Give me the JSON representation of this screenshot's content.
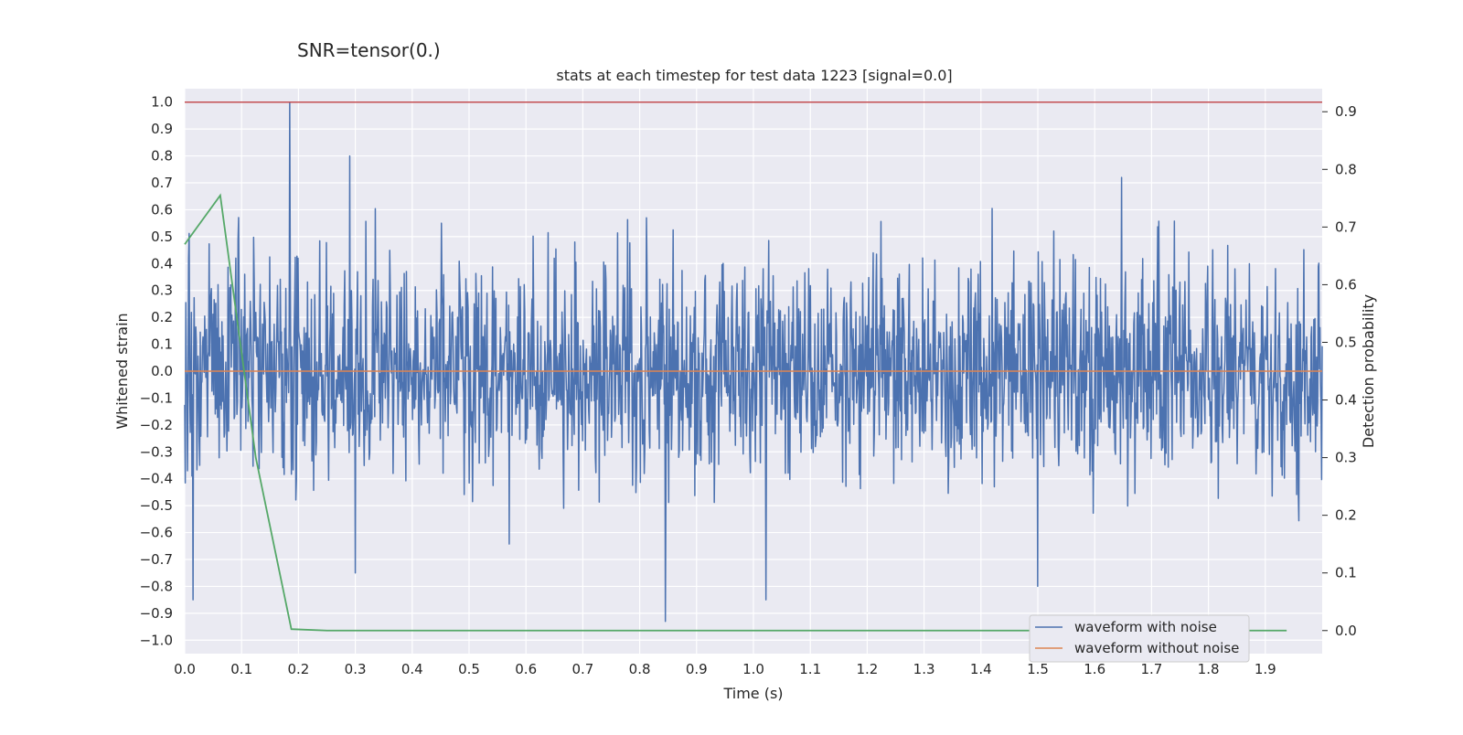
{
  "figure": {
    "suptitle": "SNR=tensor(0.)"
  },
  "chart_data": {
    "type": "line",
    "title": "stats at each timestep for test data 1223 [signal=0.0]",
    "xlabel": "Time (s)",
    "ylabel": "Whitened strain",
    "y2label": "Detection probability",
    "xlim": [
      0.0,
      2.0
    ],
    "ylim": [
      -1.05,
      1.05
    ],
    "y2lim": [
      -0.04,
      0.94
    ],
    "x_ticks": [
      "0.0",
      "0.1",
      "0.2",
      "0.3",
      "0.4",
      "0.5",
      "0.6",
      "0.7",
      "0.8",
      "0.9",
      "1.0",
      "1.1",
      "1.2",
      "1.3",
      "1.4",
      "1.5",
      "1.6",
      "1.7",
      "1.8",
      "1.9"
    ],
    "y_ticks": [
      "1.0",
      "0.9",
      "0.8",
      "0.7",
      "0.6",
      "0.5",
      "0.4",
      "0.3",
      "0.2",
      "0.1",
      "0.0",
      "−0.1",
      "−0.2",
      "−0.3",
      "−0.4",
      "−0.5",
      "−0.6",
      "−0.7",
      "−0.8",
      "−0.9",
      "−1.0"
    ],
    "y2_ticks": [
      "0.9",
      "0.8",
      "0.7",
      "0.6",
      "0.5",
      "0.4",
      "0.3",
      "0.2",
      "0.1",
      "0.0"
    ],
    "grid": true,
    "legend_position": "bottom-right",
    "colors": {
      "noisy": "#4c72b0",
      "clean": "#dd8452",
      "probability": "#55a868",
      "threshold": "#c44e52",
      "plot_bg": "#eaeaf2",
      "grid": "#ffffff"
    },
    "series": [
      {
        "name": "waveform with noise",
        "axis": "left",
        "n_points": 2048,
        "x_range": [
          0.0,
          2.0
        ],
        "approx_std": 0.2,
        "notable_peaks": [
          {
            "x": 0.185,
            "y": 1.0
          },
          {
            "x": 0.29,
            "y": 0.8
          },
          {
            "x": 0.015,
            "y": -0.85
          },
          {
            "x": 0.3,
            "y": -0.75
          },
          {
            "x": 0.845,
            "y": -0.93
          },
          {
            "x": 1.022,
            "y": -0.85
          },
          {
            "x": 1.5,
            "y": -0.8
          }
        ]
      },
      {
        "name": "waveform without noise",
        "axis": "left",
        "x": [
          0.0,
          2.0
        ],
        "y": [
          0.0,
          0.0
        ]
      },
      {
        "axis": "right",
        "x": [
          0.0,
          0.0625,
          0.125,
          0.1875,
          0.25,
          1.9375
        ],
        "y": [
          0.67,
          0.755,
          0.3,
          0.0025,
          0.0,
          0.0
        ]
      },
      {
        "axis": "left",
        "x": [
          0.0,
          2.0
        ],
        "y": [
          1.0,
          1.0
        ]
      }
    ]
  }
}
